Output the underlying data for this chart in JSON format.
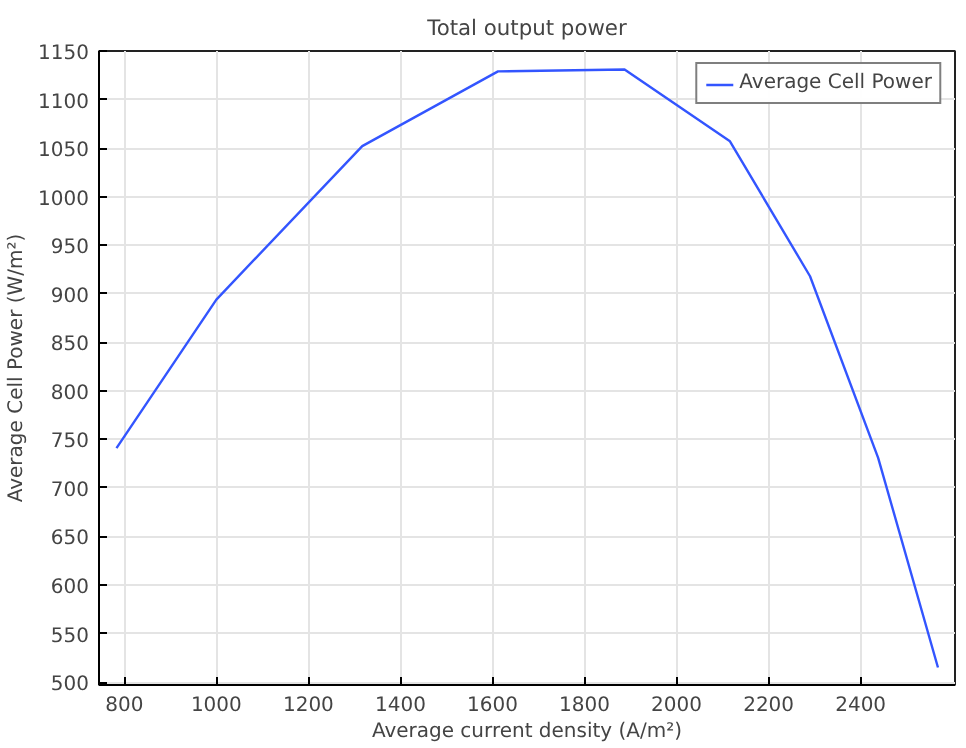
{
  "chart_data": {
    "type": "line",
    "title": "Total output power",
    "xlabel": "Average current density (A/m²)",
    "ylabel": "Average Cell Power (W/m²)",
    "x": [
      783,
      1000,
      1317,
      1612,
      1887,
      2116,
      2290,
      2438,
      2568
    ],
    "series": [
      {
        "name": "Average Cell Power",
        "color": "#3355ff",
        "values": [
          741,
          894,
          1052,
          1129,
          1131,
          1057,
          918,
          731,
          515
        ]
      }
    ],
    "xlim": [
      745,
      2605
    ],
    "ylim": [
      497,
      1150
    ],
    "xticks": [
      800,
      1000,
      1200,
      1400,
      1600,
      1800,
      2000,
      2200,
      2400
    ],
    "yticks": [
      500,
      550,
      600,
      650,
      700,
      750,
      800,
      850,
      900,
      950,
      1000,
      1050,
      1100,
      1150
    ],
    "grid": true,
    "legend": "top right",
    "marker": "none",
    "line_style": "solid"
  }
}
